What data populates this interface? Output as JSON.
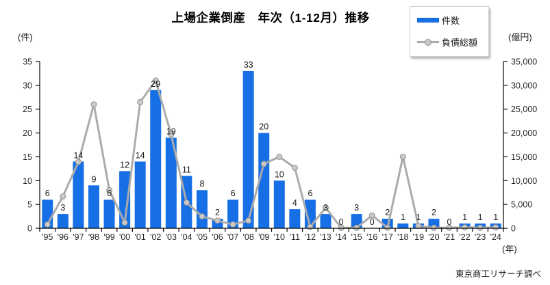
{
  "title": "上場企業倒産　年次（1-12月）推移",
  "legend": {
    "bars_label": "件数",
    "line_label": "負債総額"
  },
  "axis_units": {
    "left": "(件)",
    "right": "(億円)",
    "x": "(年)"
  },
  "source_note": "東京商工リサーチ調べ",
  "colors": {
    "bar": "#166fe5",
    "line": "#ababab",
    "marker_fill": "#c9c9c9",
    "marker_stroke": "#909090",
    "axis": "#000000",
    "tick_text": "#262626",
    "label_text": "#1a1a1a"
  },
  "chart_data": {
    "type": "bar",
    "subtype": "bar+line combo, dual axis",
    "title": "上場企業倒産　年次（1-12月）推移",
    "categories": [
      "'95",
      "'96",
      "'97",
      "'98",
      "'99",
      "'00",
      "'01",
      "'02",
      "'03",
      "'04",
      "'05",
      "'06",
      "'07",
      "'08",
      "'09",
      "'10",
      "'11",
      "'12",
      "'13",
      "'14",
      "'15",
      "'16",
      "'17",
      "'18",
      "'19",
      "'20",
      "'21",
      "'22",
      "'23",
      "'24"
    ],
    "series": [
      {
        "name": "件数",
        "type": "bar",
        "axis": "left",
        "values": [
          6,
          3,
          14,
          9,
          6,
          12,
          14,
          29,
          19,
          11,
          8,
          2,
          6,
          33,
          20,
          10,
          4,
          6,
          3,
          0,
          3,
          0,
          2,
          1,
          1,
          2,
          0,
          1,
          1,
          1
        ],
        "data_labels": true
      },
      {
        "name": "負債総額",
        "type": "line",
        "axis": "right",
        "values": [
          800,
          6700,
          13900,
          26000,
          8000,
          1200,
          26500,
          31000,
          19700,
          5400,
          2500,
          1600,
          800,
          1600,
          13500,
          15000,
          12700,
          300,
          4300,
          100,
          100,
          2700,
          100,
          15000,
          500,
          100,
          100,
          200,
          100,
          200
        ],
        "data_labels": false
      }
    ],
    "left_axis": {
      "label": "(件)",
      "min": 0,
      "max": 35,
      "step": 5
    },
    "right_axis": {
      "label": "(億円)",
      "min": 0,
      "max": 35000,
      "step": 5000
    },
    "xlabel": "(年)",
    "grid": false,
    "legend_position": "top-right"
  }
}
